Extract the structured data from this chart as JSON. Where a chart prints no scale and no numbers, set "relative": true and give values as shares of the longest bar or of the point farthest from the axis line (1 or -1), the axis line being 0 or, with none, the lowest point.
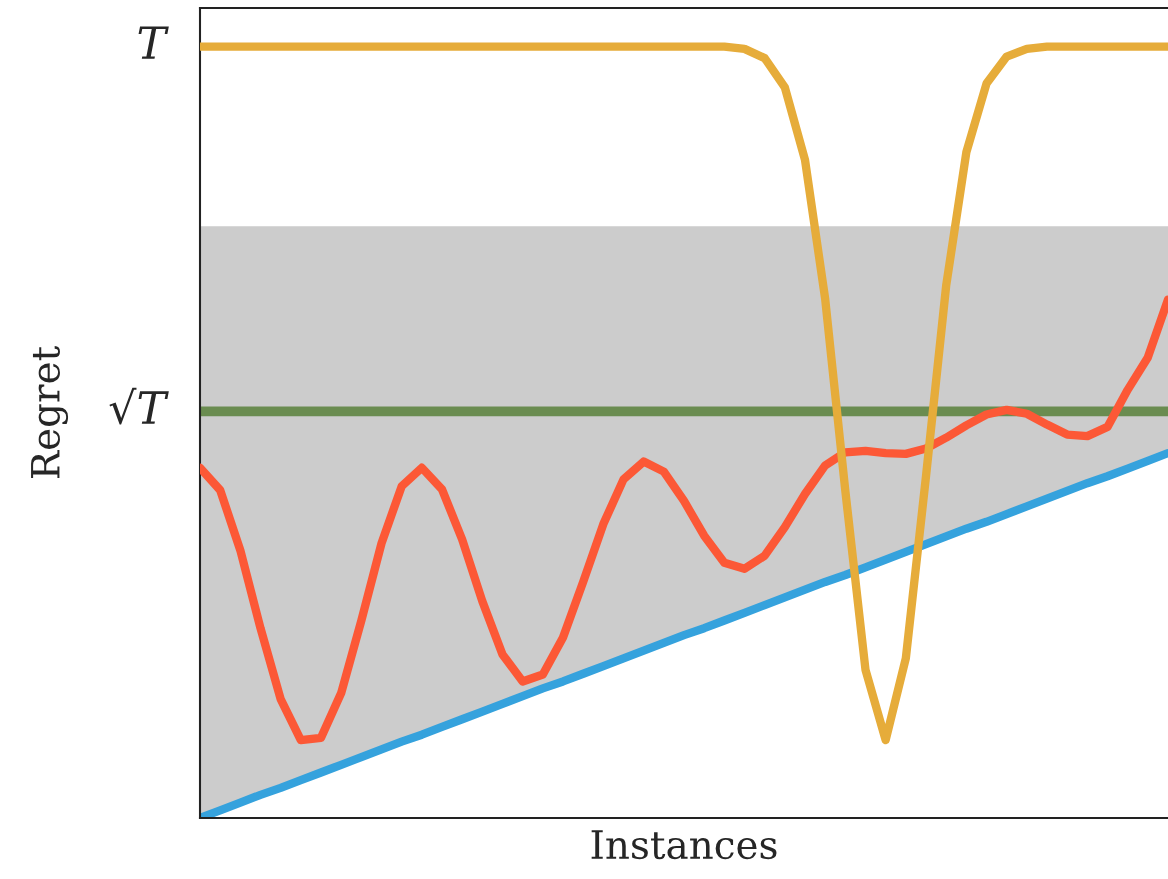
{
  "chart_data": {
    "type": "line",
    "relative": true,
    "xlabel": "Instances",
    "ylabel": "Regret",
    "categories": [
      null,
      null,
      null,
      null,
      null,
      null,
      null,
      null,
      null,
      null,
      null,
      null,
      null,
      null,
      null,
      null,
      null,
      null,
      null,
      null,
      null,
      null,
      null,
      null,
      null,
      null,
      null,
      null,
      null,
      null,
      null,
      null,
      null,
      null,
      null,
      null,
      null,
      null,
      null,
      null,
      null,
      null,
      null,
      null,
      null,
      null,
      null,
      null,
      null
    ],
    "series": [
      {
        "color": "#35a2dd",
        "values": [
          0,
          0.01,
          0.02,
          0.03,
          0.039,
          0.049,
          0.059,
          0.069,
          0.079,
          0.089,
          0.099,
          0.108,
          0.118,
          0.128,
          0.138,
          0.148,
          0.158,
          0.168,
          0.177,
          0.187,
          0.197,
          0.207,
          0.217,
          0.227,
          0.237,
          0.246,
          0.256,
          0.266,
          0.276,
          0.286,
          0.296,
          0.306,
          0.315,
          0.325,
          0.335,
          0.345,
          0.355,
          0.365,
          0.375,
          0.384,
          0.394,
          0.404,
          0.414,
          0.424,
          0.434,
          0.443,
          0.453,
          0.463,
          0.473
        ]
      },
      {
        "type": "area",
        "color": "#cccccc",
        "values": [
          0.767,
          0.767,
          0.767,
          0.767,
          0.767,
          0.767,
          0.767,
          0.767,
          0.767,
          0.767,
          0.767,
          0.767,
          0.767,
          0.767,
          0.767,
          0.767,
          0.767,
          0.767,
          0.767,
          0.767,
          0.767,
          0.767,
          0.767,
          0.767,
          0.767,
          0.767,
          0.767,
          0.767,
          0.767,
          0.767,
          0.767,
          0.767,
          0.767,
          0.767,
          0.767,
          0.767,
          0.767,
          0.767,
          0.767,
          0.767,
          0.767,
          0.767,
          0.767,
          0.767,
          0.767,
          0.767,
          0.767,
          0.767,
          0.767
        ]
      },
      {
        "color": "#fc5836",
        "values": [
          0.454,
          0.425,
          0.347,
          0.246,
          0.154,
          0.101,
          0.104,
          0.162,
          0.256,
          0.356,
          0.43,
          0.454,
          0.426,
          0.361,
          0.281,
          0.212,
          0.177,
          0.186,
          0.234,
          0.306,
          0.381,
          0.439,
          0.462,
          0.449,
          0.411,
          0.366,
          0.331,
          0.323,
          0.34,
          0.377,
          0.42,
          0.457,
          0.474,
          0.476,
          0.473,
          0.472,
          0.479,
          0.493,
          0.509,
          0.523,
          0.529,
          0.524,
          0.51,
          0.497,
          0.495,
          0.507,
          0.555,
          0.597,
          0.672
        ]
      },
      {
        "color": "#e6ac3a",
        "values": [
          1,
          1,
          1,
          1,
          1,
          1,
          1,
          1,
          1,
          1,
          1,
          1,
          1,
          1,
          1,
          1,
          1,
          1,
          1,
          1,
          1,
          1,
          1,
          1,
          1,
          1,
          1,
          0.997,
          0.985,
          0.947,
          0.853,
          0.673,
          0.424,
          0.192,
          0.101,
          0.207,
          0.443,
          0.69,
          0.863,
          0.952,
          0.987,
          0.997,
          1,
          1,
          1,
          1,
          1,
          1,
          1
        ]
      }
    ],
    "ref_lines": [
      {
        "axis": "y",
        "value": 0.527,
        "color": "#6a8c50",
        "label": "√T"
      }
    ],
    "annotations": [
      "T"
    ],
    "marker": "none",
    "line_style": "solid"
  }
}
